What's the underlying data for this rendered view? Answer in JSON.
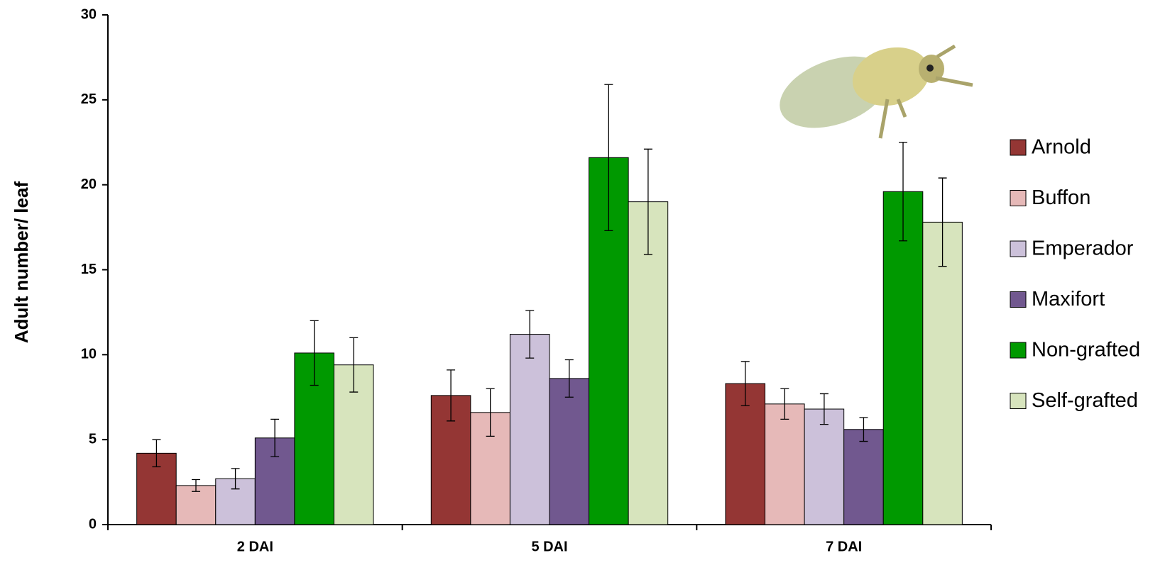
{
  "chart_data": {
    "type": "bar",
    "y_label": "Adult number/ leaf",
    "categories": [
      "2 DAI",
      "5 DAI",
      "7 DAI"
    ],
    "ylim": [
      0,
      30
    ],
    "yticks": [
      0,
      5,
      10,
      15,
      20,
      25,
      30
    ],
    "legend": "right",
    "series": [
      {
        "name": "Arnold",
        "color": "#943634",
        "values": [
          4.2,
          7.6,
          8.3
        ],
        "errors": [
          0.8,
          1.5,
          1.3
        ]
      },
      {
        "name": "Buffon",
        "color": "#e6b9b8",
        "values": [
          2.3,
          6.6,
          7.1
        ],
        "errors": [
          0.35,
          1.4,
          0.9
        ]
      },
      {
        "name": "Emperador",
        "color": "#ccc1da",
        "values": [
          2.7,
          11.2,
          6.8
        ],
        "errors": [
          0.6,
          1.4,
          0.9
        ]
      },
      {
        "name": "Maxifort",
        "color": "#71588f",
        "values": [
          5.1,
          8.6,
          5.6
        ],
        "errors": [
          1.1,
          1.1,
          0.7
        ]
      },
      {
        "name": "Non-grafted",
        "color": "#009900",
        "values": [
          10.1,
          21.6,
          19.6
        ],
        "errors": [
          1.9,
          4.3,
          2.9
        ]
      },
      {
        "name": "Self-grafted",
        "color": "#d7e4bd",
        "values": [
          9.4,
          19.0,
          17.8
        ],
        "errors": [
          1.6,
          3.1,
          2.6
        ]
      }
    ]
  }
}
